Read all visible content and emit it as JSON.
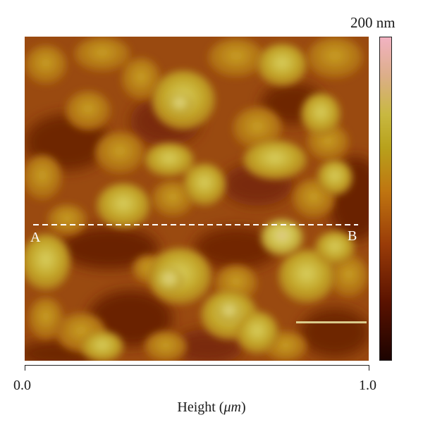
{
  "image": {
    "description_kind": "afm-height-map",
    "profile_line": {
      "start_label": "A",
      "end_label": "B"
    }
  },
  "colorbar": {
    "max_label": "200 nm",
    "colors": [
      "#1c0300",
      "#5a1200",
      "#9a3c08",
      "#bf7410",
      "#b8a21c",
      "#c8b840",
      "#dcae88",
      "#f2b2c2"
    ]
  },
  "x_axis": {
    "tick_labels": [
      "0.0",
      "1.0"
    ],
    "title_prefix": "Height (",
    "title_unit": "μm",
    "title_suffix": ")"
  }
}
